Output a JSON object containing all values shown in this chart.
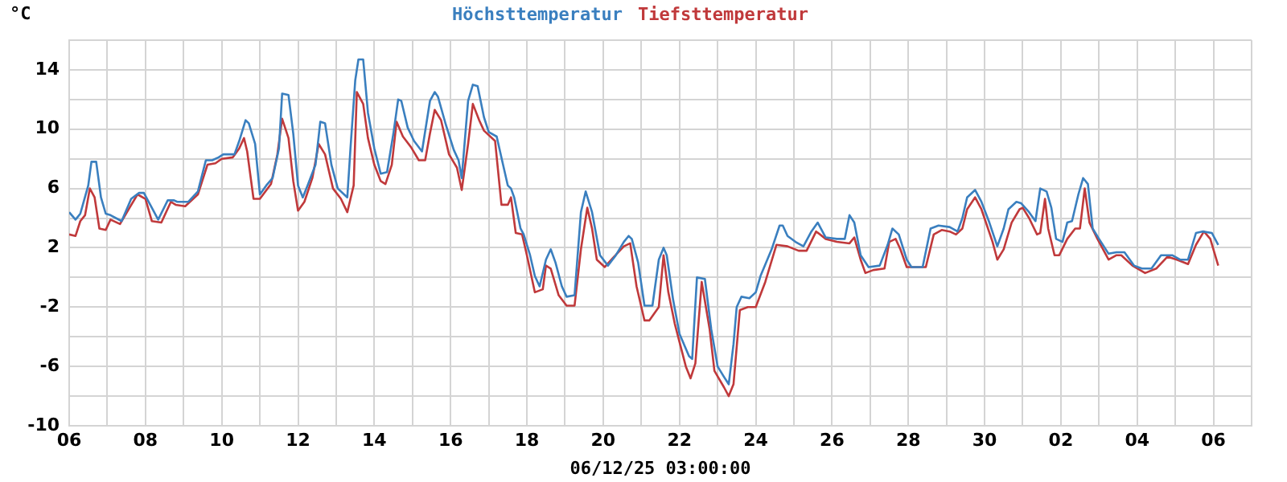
{
  "chart_data": {
    "type": "line",
    "ylabel": "°C",
    "annotations": [
      "06/12/25 03:00:00"
    ],
    "xlim": [
      "--11-06",
      "--12-07"
    ],
    "xticks": [
      {
        "value": "--11-06",
        "label": "06"
      },
      {
        "value": "--11-07",
        "label": null
      },
      {
        "value": "--11-08",
        "label": "08"
      },
      {
        "value": "--11-09",
        "label": null
      },
      {
        "value": "--11-10",
        "label": "10"
      },
      {
        "value": "--11-11",
        "label": null
      },
      {
        "value": "--11-12",
        "label": "12"
      },
      {
        "value": "--11-13",
        "label": null
      },
      {
        "value": "--11-14",
        "label": "14"
      },
      {
        "value": "--11-15",
        "label": null
      },
      {
        "value": "--11-16",
        "label": "16"
      },
      {
        "value": "--11-17",
        "label": null
      },
      {
        "value": "--11-18",
        "label": "18"
      },
      {
        "value": "--11-19",
        "label": null
      },
      {
        "value": "--11-20",
        "label": "20"
      },
      {
        "value": "--11-21",
        "label": null
      },
      {
        "value": "--11-22",
        "label": "22"
      },
      {
        "value": "--11-23",
        "label": null
      },
      {
        "value": "--11-24",
        "label": "24"
      },
      {
        "value": "--11-25",
        "label": null
      },
      {
        "value": "--11-26",
        "label": "26"
      },
      {
        "value": "--11-27",
        "label": null
      },
      {
        "value": "--11-28",
        "label": "28"
      },
      {
        "value": "--11-29",
        "label": null
      },
      {
        "value": "--11-30",
        "label": "30"
      },
      {
        "value": "--12-01",
        "label": null
      },
      {
        "value": "--12-02",
        "label": "02"
      },
      {
        "value": "--12-03",
        "label": null
      },
      {
        "value": "--12-04",
        "label": "04"
      },
      {
        "value": "--12-05",
        "label": null
      },
      {
        "value": "--12-06",
        "label": "06"
      },
      {
        "value": "--12-07",
        "label": null
      }
    ],
    "ylim": [
      -10,
      16
    ],
    "yticks": [
      -10,
      {
        "value": -8,
        "label": null
      },
      -6,
      {
        "value": -4,
        "label": null
      },
      -2,
      {
        "value": 0,
        "label": null
      },
      2,
      {
        "value": 4,
        "label": null
      },
      6,
      {
        "value": 8,
        "label": null
      },
      10,
      {
        "value": 12,
        "label": null
      },
      14,
      {
        "value": 16,
        "label": null
      }
    ],
    "grid": true,
    "legend": "top",
    "marker": "none",
    "line_style": "solid",
    "series": [
      {
        "name": "Höchsttemperatur",
        "color": "#3a7fbf",
        "x": [
          "--11-06T00:00",
          "--11-06T04:00",
          "--11-06T07:00",
          "--11-06T12:00",
          "--11-06T14:00",
          "--11-06T17:00",
          "--11-06T20:00",
          "--11-06T23:00",
          "--11-07T02:00",
          "--11-07T09:00",
          "--11-07T15:00",
          "--11-07T20:00",
          "--11-07T23:00",
          "--11-08T03:00",
          "--11-08T08:00",
          "--11-08T14:00",
          "--11-08T18:00",
          "--11-08T20:00",
          "--11-09T03:00",
          "--11-09T09:00",
          "--11-09T14:00",
          "--11-09T18:00",
          "--11-09T22:00",
          "--11-10T01:00",
          "--11-10T08:00",
          "--11-10T11:00",
          "--11-10T15:00",
          "--11-10T17:00",
          "--11-10T21:00",
          "--11-11T00:00",
          "--11-11T04:00",
          "--11-11T08:00",
          "--11-11T12:00",
          "--11-11T14:00",
          "--11-11T18:00",
          "--11-11T21:00",
          "--11-12T00:00",
          "--11-12T03:00",
          "--11-12T06:00",
          "--11-12T11:00",
          "--11-12T14:00",
          "--11-12T17:00",
          "--11-12T21:00",
          "--11-13T01:00",
          "--11-13T07:00",
          "--11-13T09:00",
          "--11-13T12:00",
          "--11-13T14:00",
          "--11-13T17:00",
          "--11-13T20:00",
          "--11-14T00:00",
          "--11-14T04:00",
          "--11-14T08:00",
          "--11-14T12:00",
          "--11-14T15:00",
          "--11-14T17:00",
          "--11-14T21:00",
          "--11-15T01:00",
          "--11-15T06:00",
          "--11-15T11:00",
          "--11-15T14:00",
          "--11-15T16:00",
          "--11-15T21:00",
          "--11-16T02:00",
          "--11-16T05:00",
          "--11-16T07:00",
          "--11-16T11:00",
          "--11-16T14:00",
          "--11-16T17:00",
          "--11-16T21:00",
          "--11-17T00:00",
          "--11-17T05:00",
          "--11-17T09:00",
          "--11-17T12:00",
          "--11-17T14:00",
          "--11-17T16:00",
          "--11-17T20:00",
          "--11-17T22:00",
          "--11-18T02:00",
          "--11-18T05:00",
          "--11-18T08:00",
          "--11-18T12:00",
          "--11-18T15:00",
          "--11-18T18:00",
          "--11-18T22:00",
          "--11-19T01:00",
          "--11-19T06:00",
          "--11-19T10:00",
          "--11-19T13:00",
          "--11-19T17:00",
          "--11-19T22:00",
          "--11-20T03:00",
          "--11-20T08:00",
          "--11-20T13:00",
          "--11-20T16:00",
          "--11-20T18:00",
          "--11-20T22:00",
          "--11-21T02:00",
          "--11-21T07:00",
          "--11-21T11:00",
          "--11-21T14:00",
          "--11-21T16:00",
          "--11-21T20:00",
          "--11-22T00:00",
          "--11-22T06:00",
          "--11-22T08:00",
          "--11-22T11:00",
          "--11-22T16:00",
          "--11-22T20:00",
          "--11-23T00:00",
          "--11-23T04:00",
          "--11-23T07:00",
          "--11-23T10:00",
          "--11-23T12:00",
          "--11-23T15:00",
          "--11-23T20:00",
          "--11-24T00:00",
          "--11-24T03:00",
          "--11-24T10:00",
          "--11-24T15:00",
          "--11-24T17:00",
          "--11-24T20:00",
          "--11-25T01:00",
          "--11-25T06:00",
          "--11-25T11:00",
          "--11-25T15:00",
          "--11-25T20:00",
          "--11-26T03:00",
          "--11-26T08:00",
          "--11-26T11:00",
          "--11-26T14:00",
          "--11-26T18:00",
          "--11-26T23:00",
          "--11-27T06:00",
          "--11-27T11:00",
          "--11-27T14:00",
          "--11-27T18:00",
          "--11-27T23:00",
          "--11-28T02:00",
          "--11-28T09:00",
          "--11-28T14:00",
          "--11-28T19:00",
          "--11-29T02:00",
          "--11-29T07:00",
          "--11-29T10:00",
          "--11-29T13:00",
          "--11-29T18:00",
          "--11-29T22:00",
          "--11-30T03:00",
          "--11-30T08:00",
          "--11-30T12:00",
          "--11-30T15:00",
          "--11-30T20:00",
          "--11-30T23:00",
          "--12-01T04:00",
          "--12-01T08:00",
          "--12-01T11:00",
          "--12-01T15:00",
          "--12-01T18:00",
          "--12-01T21:00",
          "--12-02T01:00",
          "--12-02T04:00",
          "--12-02T07:00",
          "--12-02T11:00",
          "--12-02T14:00",
          "--12-02T17:00",
          "--12-02T20:00",
          "--12-03T00:00",
          "--12-03T06:00",
          "--12-03T11:00",
          "--12-03T16:00",
          "--12-03T22:00",
          "--12-04T03:00",
          "--12-04T09:00",
          "--12-04T15:00",
          "--12-04T22:00",
          "--12-05T03:00",
          "--12-05T08:00",
          "--12-05T13:00",
          "--12-05T17:00",
          "--12-05T23:00",
          "--12-06T03:00"
        ],
        "values": [
          4.4,
          3.9,
          4.3,
          6.2,
          7.8,
          7.8,
          5.4,
          4.3,
          4.2,
          3.8,
          5.3,
          5.7,
          5.7,
          4.9,
          3.9,
          5.2,
          5.2,
          5.1,
          5.1,
          5.8,
          7.9,
          7.9,
          8.1,
          8.3,
          8.3,
          9.2,
          10.6,
          10.4,
          9.0,
          5.6,
          6.2,
          6.7,
          8.7,
          12.4,
          12.3,
          9.7,
          6.2,
          5.4,
          6.2,
          7.6,
          10.5,
          10.4,
          7.6,
          6.0,
          5.4,
          8.7,
          13.3,
          14.7,
          14.7,
          11.1,
          8.7,
          7.0,
          7.1,
          9.7,
          12.0,
          11.9,
          10.1,
          9.2,
          8.5,
          11.9,
          12.5,
          12.2,
          10.3,
          8.6,
          7.9,
          6.7,
          11.9,
          13.0,
          12.9,
          10.8,
          9.8,
          9.5,
          7.6,
          6.2,
          6.0,
          5.4,
          3.3,
          2.9,
          1.5,
          0.1,
          -0.6,
          1.2,
          1.9,
          1.0,
          -0.6,
          -1.3,
          -1.2,
          4.4,
          5.8,
          4.4,
          1.5,
          0.8,
          1.5,
          2.4,
          2.8,
          2.6,
          1.0,
          -1.9,
          -1.9,
          1.2,
          2.0,
          1.5,
          -1.5,
          -3.8,
          -5.3,
          -5.5,
          0.0,
          -0.1,
          -3.5,
          -6.0,
          -6.7,
          -7.2,
          -4.5,
          -2.0,
          -1.3,
          -1.4,
          -1.0,
          0.1,
          1.9,
          3.5,
          3.5,
          2.8,
          2.4,
          2.1,
          3.1,
          3.7,
          2.7,
          2.6,
          2.6,
          4.2,
          3.7,
          1.5,
          0.7,
          0.8,
          2.2,
          3.3,
          2.9,
          1.2,
          0.7,
          0.7,
          3.3,
          3.5,
          3.4,
          3.1,
          4.0,
          5.4,
          5.9,
          5.1,
          3.7,
          2.1,
          3.3,
          4.6,
          5.1,
          5.0,
          4.4,
          3.8,
          6.0,
          5.8,
          4.7,
          2.6,
          2.4,
          3.7,
          3.8,
          5.6,
          6.7,
          6.3,
          3.3,
          2.6,
          1.6,
          1.7,
          1.7,
          0.8,
          0.6,
          0.6,
          1.5,
          1.5,
          1.2,
          1.2,
          3.0,
          3.1,
          3.0,
          2.2
        ]
      },
      {
        "name": "Tiefsttemperatur",
        "color": "#c0393b",
        "x": [
          "--11-06T00:00",
          "--11-06T04:00",
          "--11-06T07:00",
          "--11-06T10:00",
          "--11-06T13:00",
          "--11-06T16:00",
          "--11-06T19:00",
          "--11-06T23:00",
          "--11-07T02:00",
          "--11-07T08:00",
          "--11-07T14:00",
          "--11-07T19:00",
          "--11-08T00:00",
          "--11-08T04:00",
          "--11-08T10:00",
          "--11-08T16:00",
          "--11-08T19:00",
          "--11-09T01:00",
          "--11-09T09:00",
          "--11-09T15:00",
          "--11-09T20:00",
          "--11-10T00:00",
          "--11-10T07:00",
          "--11-10T11:00",
          "--11-10T14:00",
          "--11-10T16:00",
          "--11-10T20:00",
          "--11-11T00:00",
          "--11-11T07:00",
          "--11-11T11:00",
          "--11-11T14:00",
          "--11-11T18:00",
          "--11-11T21:00",
          "--11-12T00:00",
          "--11-12T04:00",
          "--11-12T09:00",
          "--11-12T13:00",
          "--11-12T17:00",
          "--11-12T22:00",
          "--11-13T03:00",
          "--11-13T07:00",
          "--11-13T11:00",
          "--11-13T13:00",
          "--11-13T17:00",
          "--11-13T20:00",
          "--11-14T00:00",
          "--11-14T04:00",
          "--11-14T07:00",
          "--11-14T11:00",
          "--11-14T14:00",
          "--11-14T18:00",
          "--11-14T23:00",
          "--11-15T04:00",
          "--11-15T08:00",
          "--11-15T11:00",
          "--11-15T14:00",
          "--11-15T18:00",
          "--11-15T23:00",
          "--11-16T04:00",
          "--11-16T07:00",
          "--11-16T11:00",
          "--11-16T14:00",
          "--11-16T18:00",
          "--11-16T21:00",
          "--11-17T04:00",
          "--11-17T08:00",
          "--11-17T12:00",
          "--11-17T14:00",
          "--11-17T17:00",
          "--11-17T21:00",
          "--11-18T00:00",
          "--11-18T05:00",
          "--11-18T10:00",
          "--11-18T12:00",
          "--11-18T15:00",
          "--11-18T20:00",
          "--11-19T01:00",
          "--11-19T06:00",
          "--11-19T10:00",
          "--11-19T14:00",
          "--11-19T17:00",
          "--11-19T20:00",
          "--11-20T01:00",
          "--11-20T06:00",
          "--11-20T13:00",
          "--11-20T17:00",
          "--11-20T21:00",
          "--11-21T02:00",
          "--11-21T05:00",
          "--11-21T11:00",
          "--11-21T14:00",
          "--11-21T17:00",
          "--11-21T21:00",
          "--11-22T04:00",
          "--11-22T07:00",
          "--11-22T10:00",
          "--11-22T14:00",
          "--11-22T19:00",
          "--11-22T22:00",
          "--11-23T04:00",
          "--11-23T07:00",
          "--11-23T10:00",
          "--11-23T14:00",
          "--11-23T19:00",
          "--11-24T00:00",
          "--11-24T06:00",
          "--11-24T13:00",
          "--11-24T20:00",
          "--11-25T03:00",
          "--11-25T08:00",
          "--11-25T14:00",
          "--11-25T20:00",
          "--11-26T03:00",
          "--11-26T11:00",
          "--11-26T14:00",
          "--11-26T18:00",
          "--11-26T21:00",
          "--11-27T02:00",
          "--11-27T09:00",
          "--11-27T12:00",
          "--11-27T16:00",
          "--11-27T19:00",
          "--11-27T23:00",
          "--11-28T11:00",
          "--11-28T16:00",
          "--11-28T21:00",
          "--11-29T02:00",
          "--11-29T06:00",
          "--11-29T10:00",
          "--11-29T13:00",
          "--11-29T18:00",
          "--11-29T22:00",
          "--11-30T05:00",
          "--11-30T08:00",
          "--11-30T12:00",
          "--11-30T17:00",
          "--11-30T22:00",
          "--12-01T00:00",
          "--12-01T04:00",
          "--12-01T09:00",
          "--12-01T11:00",
          "--12-01T14:00",
          "--12-01T16:00",
          "--12-01T20:00",
          "--12-01T23:00",
          "--12-02T04:00",
          "--12-02T09:00",
          "--12-02T12:00",
          "--12-02T15:00",
          "--12-02T18:00",
          "--12-02T23:00",
          "--12-03T06:00",
          "--12-03T11:00",
          "--12-03T14:00",
          "--12-03T21:00",
          "--12-04T05:00",
          "--12-04T12:00",
          "--12-04T19:00",
          "--12-05T01:00",
          "--12-05T08:00",
          "--12-05T13:00",
          "--12-05T18:00",
          "--12-05T22:00",
          "--12-06T03:00"
        ],
        "values": [
          2.9,
          2.8,
          3.8,
          4.2,
          6.0,
          5.4,
          3.3,
          3.2,
          3.9,
          3.6,
          4.7,
          5.6,
          5.3,
          3.8,
          3.7,
          5.1,
          4.9,
          4.8,
          5.6,
          7.6,
          7.7,
          8.0,
          8.1,
          8.7,
          9.4,
          8.5,
          5.3,
          5.3,
          6.3,
          8.3,
          10.7,
          9.4,
          6.5,
          4.5,
          5.1,
          6.7,
          9.0,
          8.3,
          6.0,
          5.3,
          4.4,
          6.2,
          12.5,
          11.7,
          9.4,
          7.6,
          6.5,
          6.3,
          7.6,
          10.5,
          9.5,
          8.8,
          7.9,
          7.9,
          9.7,
          11.3,
          10.6,
          8.3,
          7.4,
          5.9,
          9.0,
          11.7,
          10.6,
          9.9,
          9.2,
          4.9,
          4.9,
          5.4,
          3.0,
          2.9,
          1.5,
          -1.0,
          -0.8,
          0.8,
          0.6,
          -1.2,
          -1.9,
          -1.9,
          1.9,
          4.7,
          3.3,
          1.2,
          0.7,
          1.3,
          2.1,
          2.3,
          -0.6,
          -2.9,
          -2.9,
          -2.0,
          1.5,
          -1.0,
          -3.1,
          -6.0,
          -6.8,
          -5.8,
          -0.3,
          -3.5,
          -6.3,
          -7.4,
          -8.0,
          -7.2,
          -2.2,
          -2.0,
          -2.0,
          -0.3,
          2.2,
          2.1,
          1.8,
          1.8,
          3.1,
          2.6,
          2.4,
          2.3,
          2.7,
          1.2,
          0.3,
          0.5,
          0.6,
          2.4,
          2.6,
          1.9,
          0.7,
          0.7,
          2.9,
          3.2,
          3.1,
          2.9,
          3.3,
          4.6,
          5.4,
          4.6,
          2.4,
          1.2,
          1.9,
          3.7,
          4.6,
          4.7,
          4.0,
          2.9,
          3.0,
          5.3,
          3.3,
          1.5,
          1.5,
          2.6,
          3.3,
          3.3,
          6.0,
          3.7,
          2.6,
          1.2,
          1.5,
          1.5,
          0.8,
          0.3,
          0.6,
          1.4,
          1.2,
          0.9,
          2.2,
          3.1,
          2.6,
          0.8
        ]
      }
    ]
  }
}
